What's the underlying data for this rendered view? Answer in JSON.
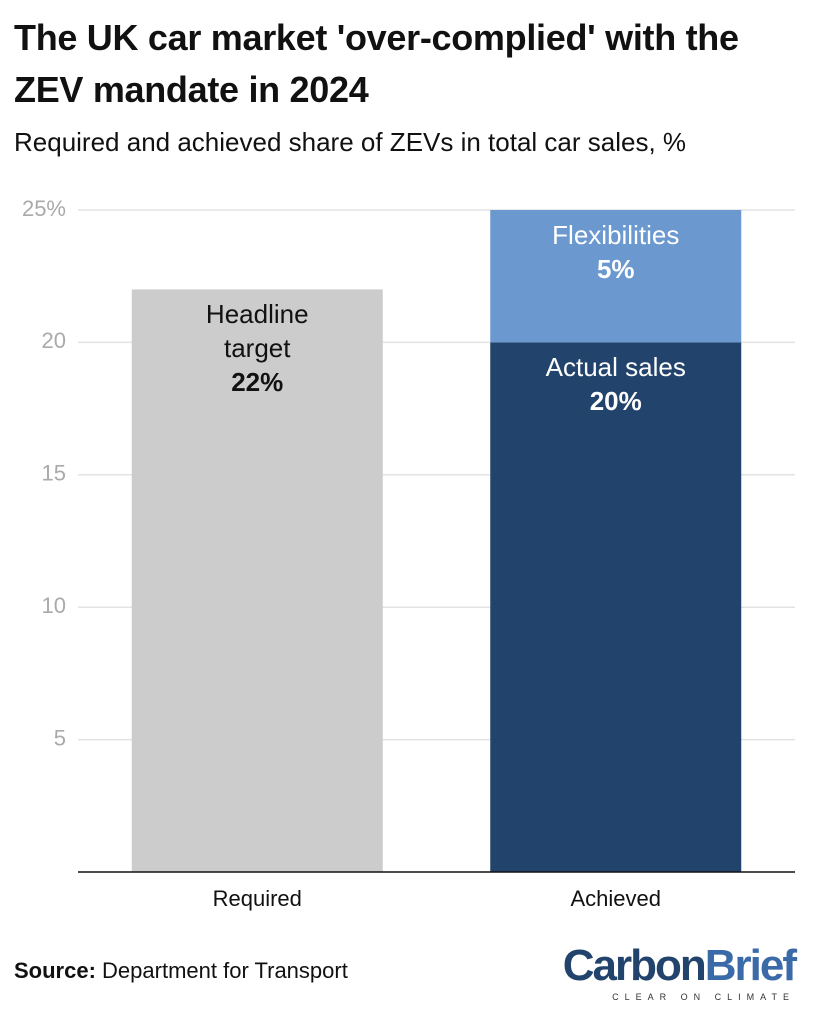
{
  "chart_data": {
    "type": "bar",
    "stacked": true,
    "title": "The UK car market 'over-complied' with the ZEV mandate in 2024",
    "subtitle": "Required and achieved share of ZEVs in total car sales, %",
    "categories": [
      "Required",
      "Achieved"
    ],
    "series": [
      {
        "name": "Headline target",
        "color": "#cccccc",
        "text_color": "#111111",
        "values": [
          22,
          null
        ],
        "value_labels": [
          "22%",
          null
        ]
      },
      {
        "name": "Actual sales",
        "color": "#22436b",
        "text_color": "#ffffff",
        "values": [
          null,
          20
        ],
        "value_labels": [
          null,
          "20%"
        ]
      },
      {
        "name": "Flexibilities",
        "color": "#6a98cf",
        "text_color": "#ffffff",
        "values": [
          null,
          5
        ],
        "value_labels": [
          null,
          "5%"
        ]
      }
    ],
    "ylim": [
      0,
      25
    ],
    "yticks": [
      5,
      10,
      15,
      20,
      {
        "value": 25,
        "label": "25%"
      }
    ],
    "grid": true,
    "source_label": "Source:",
    "source": "Department for Transport",
    "logo": {
      "name_parts": [
        "Carbon",
        "Brief"
      ],
      "tagline": "CLEAR ON CLIMATE"
    }
  }
}
